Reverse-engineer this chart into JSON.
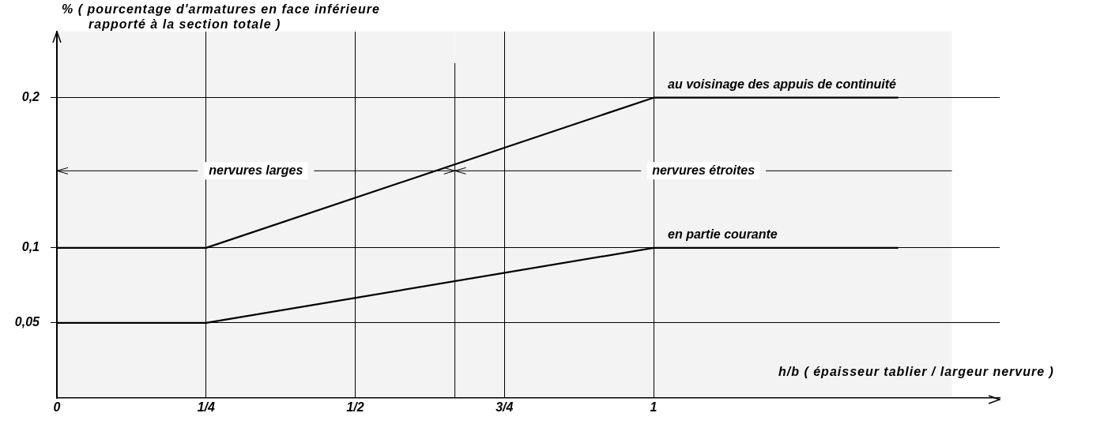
{
  "chart_data": {
    "type": "line",
    "xlabel": "h/b ( épaisseur tablier / largeur nervure )",
    "ylabel": "% ( pourcentage d'armatures en face inférieure rapporté à la section totale )",
    "series": [
      {
        "name": "au voisinage des appuis de continuité",
        "color": "#000000",
        "x": [
          0,
          0.25,
          1,
          1.41
        ],
        "values": [
          0.1,
          0.1,
          0.2,
          0.2
        ]
      },
      {
        "name": "en partie courante",
        "color": "#000000",
        "x": [
          0,
          0.25,
          1,
          1.41
        ],
        "values": [
          0.05,
          0.05,
          0.1,
          0.1
        ]
      }
    ],
    "xlim": [
      0,
      1.58
    ],
    "ylim": [
      0,
      0.244
    ],
    "xticks": [
      0,
      {
        "value": 0.25,
        "label": "1/4"
      },
      {
        "value": 0.5,
        "label": "1/2"
      },
      {
        "value": 0.75,
        "label": "3/4"
      },
      1
    ],
    "yticks": [
      {
        "value": 0.05,
        "label": "0,05"
      },
      {
        "value": 0.1,
        "label": "0,1"
      },
      {
        "value": 0.2,
        "label": "0,2"
      }
    ],
    "ref_lines": [
      {
        "axis": "x",
        "value": 0.667
      }
    ],
    "bands": [
      {
        "axis": "x",
        "from": 0,
        "to": 0.667,
        "label": "nervures larges",
        "color": "#f3f3f3"
      },
      {
        "axis": "x",
        "from": 0.667,
        "to": 1.5,
        "label": "nervures étroites",
        "color": "#f3f3f3"
      }
    ],
    "grid": true,
    "legend": false,
    "marker": "none",
    "line_style": "solid"
  }
}
